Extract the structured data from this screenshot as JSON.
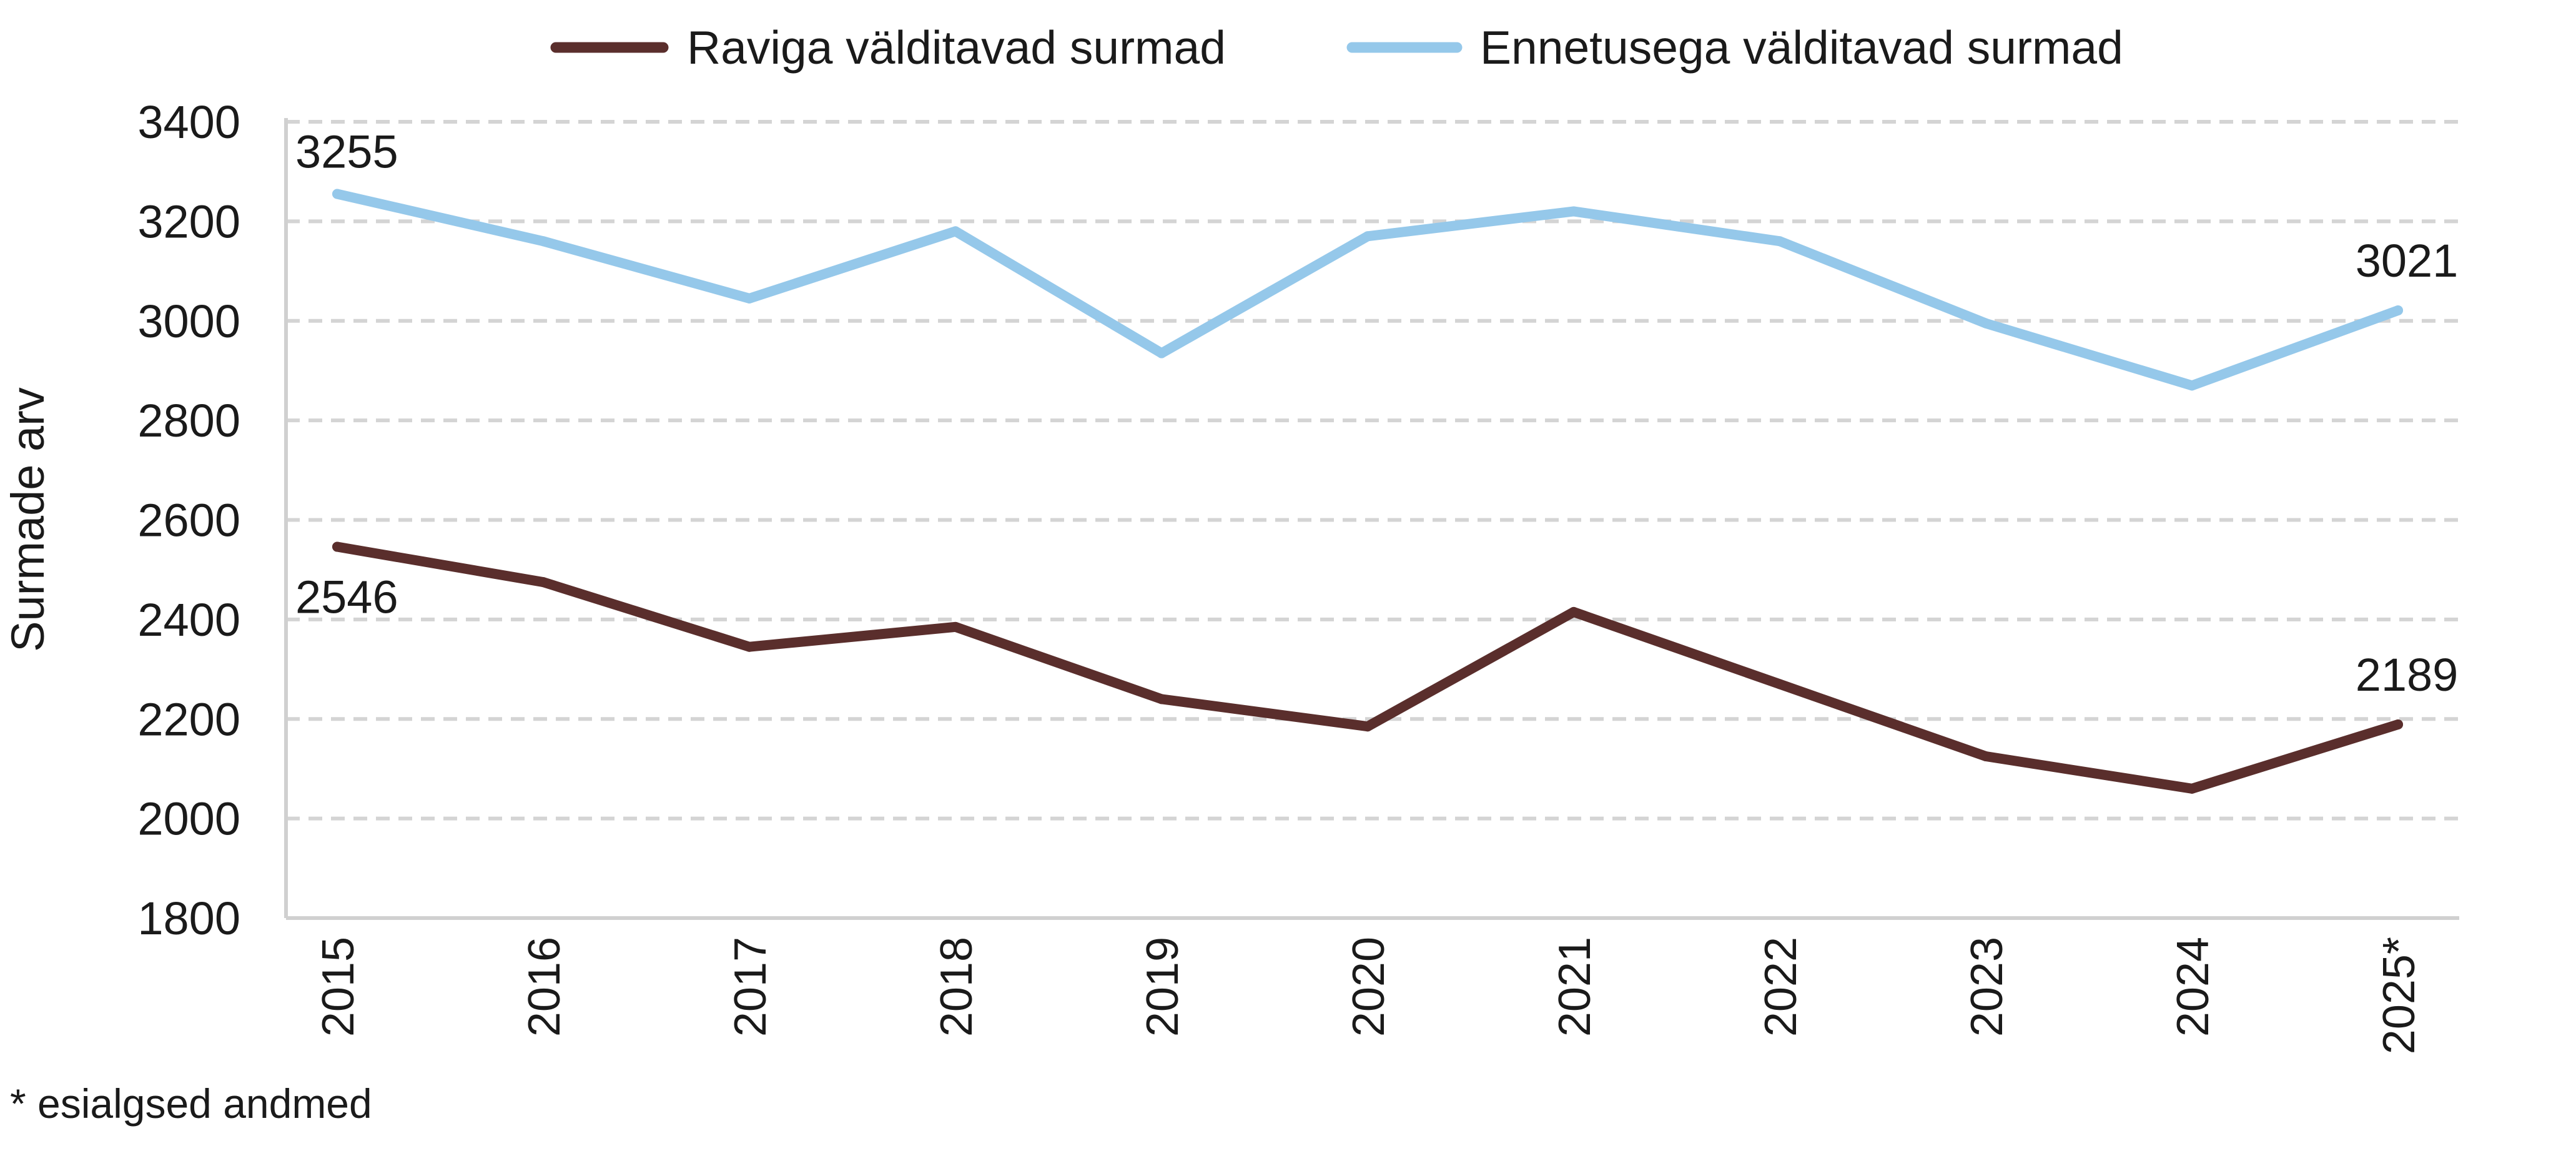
{
  "chart_data": {
    "type": "line",
    "title": "",
    "xlabel": "",
    "ylabel": "Surmade arv",
    "categories": [
      "2015",
      "2016",
      "2017",
      "2018",
      "2019",
      "2020",
      "2021",
      "2022",
      "2023",
      "2024",
      "2025*"
    ],
    "ylim": [
      1800,
      3400
    ],
    "yticks": [
      "1800",
      "2000",
      "2200",
      "2400",
      "2600",
      "2800",
      "3000",
      "3200",
      "3400"
    ],
    "grid": true,
    "legend_position": "top-center",
    "series": [
      {
        "name": "Raviga välditavad surmad",
        "color": "#5a2e2c",
        "values": [
          2546,
          2475,
          2345,
          2385,
          2240,
          2185,
          2415,
          2270,
          2125,
          2060,
          2189
        ],
        "labels": [
          {
            "index": 0,
            "text": "2546"
          },
          {
            "index": 10,
            "text": "2189"
          }
        ]
      },
      {
        "name": "Ennetusega välditavad surmad",
        "color": "#95c8ea",
        "values": [
          3255,
          3160,
          3045,
          3180,
          2935,
          3170,
          3220,
          3160,
          2995,
          2870,
          3021
        ],
        "labels": [
          {
            "index": 0,
            "text": "3255"
          },
          {
            "index": 10,
            "text": "3021"
          }
        ]
      }
    ],
    "footnote": "* esialgsed andmed"
  }
}
